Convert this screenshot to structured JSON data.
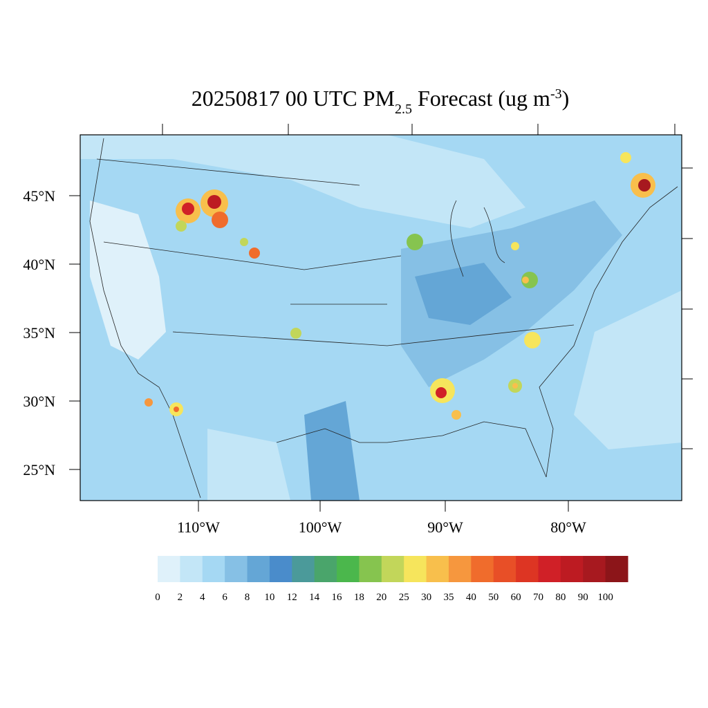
{
  "title": {
    "main": "20250817 00 UTC PM",
    "sub": "2.5",
    "rest": " Forecast (ug m",
    "sup": "-3",
    "end": ")"
  },
  "lat_labels": [
    "45°N",
    "40°N",
    "35°N",
    "30°N",
    "25°N"
  ],
  "lon_labels": [
    "110°W",
    "100°W",
    "90°W",
    "80°W"
  ],
  "colorbar": {
    "levels": [
      0,
      2,
      4,
      6,
      8,
      10,
      12,
      14,
      16,
      18,
      20,
      25,
      30,
      35,
      40,
      50,
      60,
      70,
      80,
      90,
      100
    ],
    "colors": [
      "#dff1fa",
      "#c3e6f7",
      "#a5d8f3",
      "#86c0e5",
      "#64a6d6",
      "#4a8ccb",
      "#4b9a9a",
      "#4aa56b",
      "#4bb74c",
      "#86c44f",
      "#c2d65a",
      "#f6e55c",
      "#f8bf4c",
      "#f6973e",
      "#f06c2c",
      "#e84f27",
      "#dd3523",
      "#d02027",
      "#bd1b22",
      "#a7191f",
      "#8c1519"
    ]
  }
}
